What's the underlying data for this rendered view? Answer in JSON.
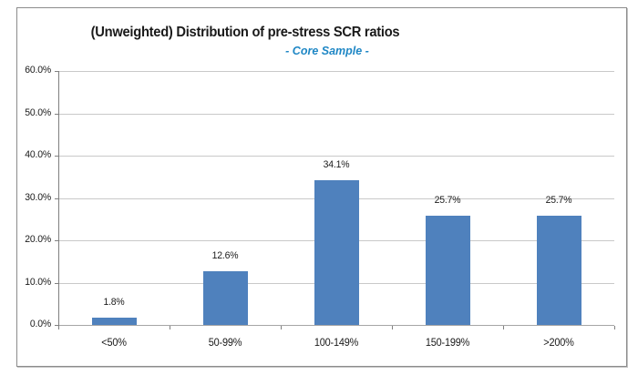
{
  "chart_data": {
    "type": "bar",
    "title": "(Unweighted) Distribution of pre-stress SCR ratios",
    "subtitle": "- Core Sample -",
    "categories": [
      "<50%",
      "50-99%",
      "100-149%",
      "150-199%",
      ">200%"
    ],
    "values": [
      1.8,
      12.6,
      34.1,
      25.7,
      25.7
    ],
    "data_labels": [
      "1.8%",
      "12.6%",
      "34.1%",
      "25.7%",
      "25.7%"
    ],
    "xlabel": "",
    "ylabel": "",
    "ylim": [
      0,
      60
    ],
    "ytick_labels": [
      "0.0%",
      "10.0%",
      "20.0%",
      "30.0%",
      "40.0%",
      "50.0%",
      "60.0%"
    ],
    "grid": true,
    "legend": false
  },
  "colors": {
    "bar": "#4f81bd",
    "subtitle_text": "#1f87c5",
    "gridline": "#c9c9c9",
    "axis_line": "#a6a6a6",
    "tick": "#808080",
    "text": "#1a1a1a",
    "frame_border": "#8c8c8c"
  }
}
